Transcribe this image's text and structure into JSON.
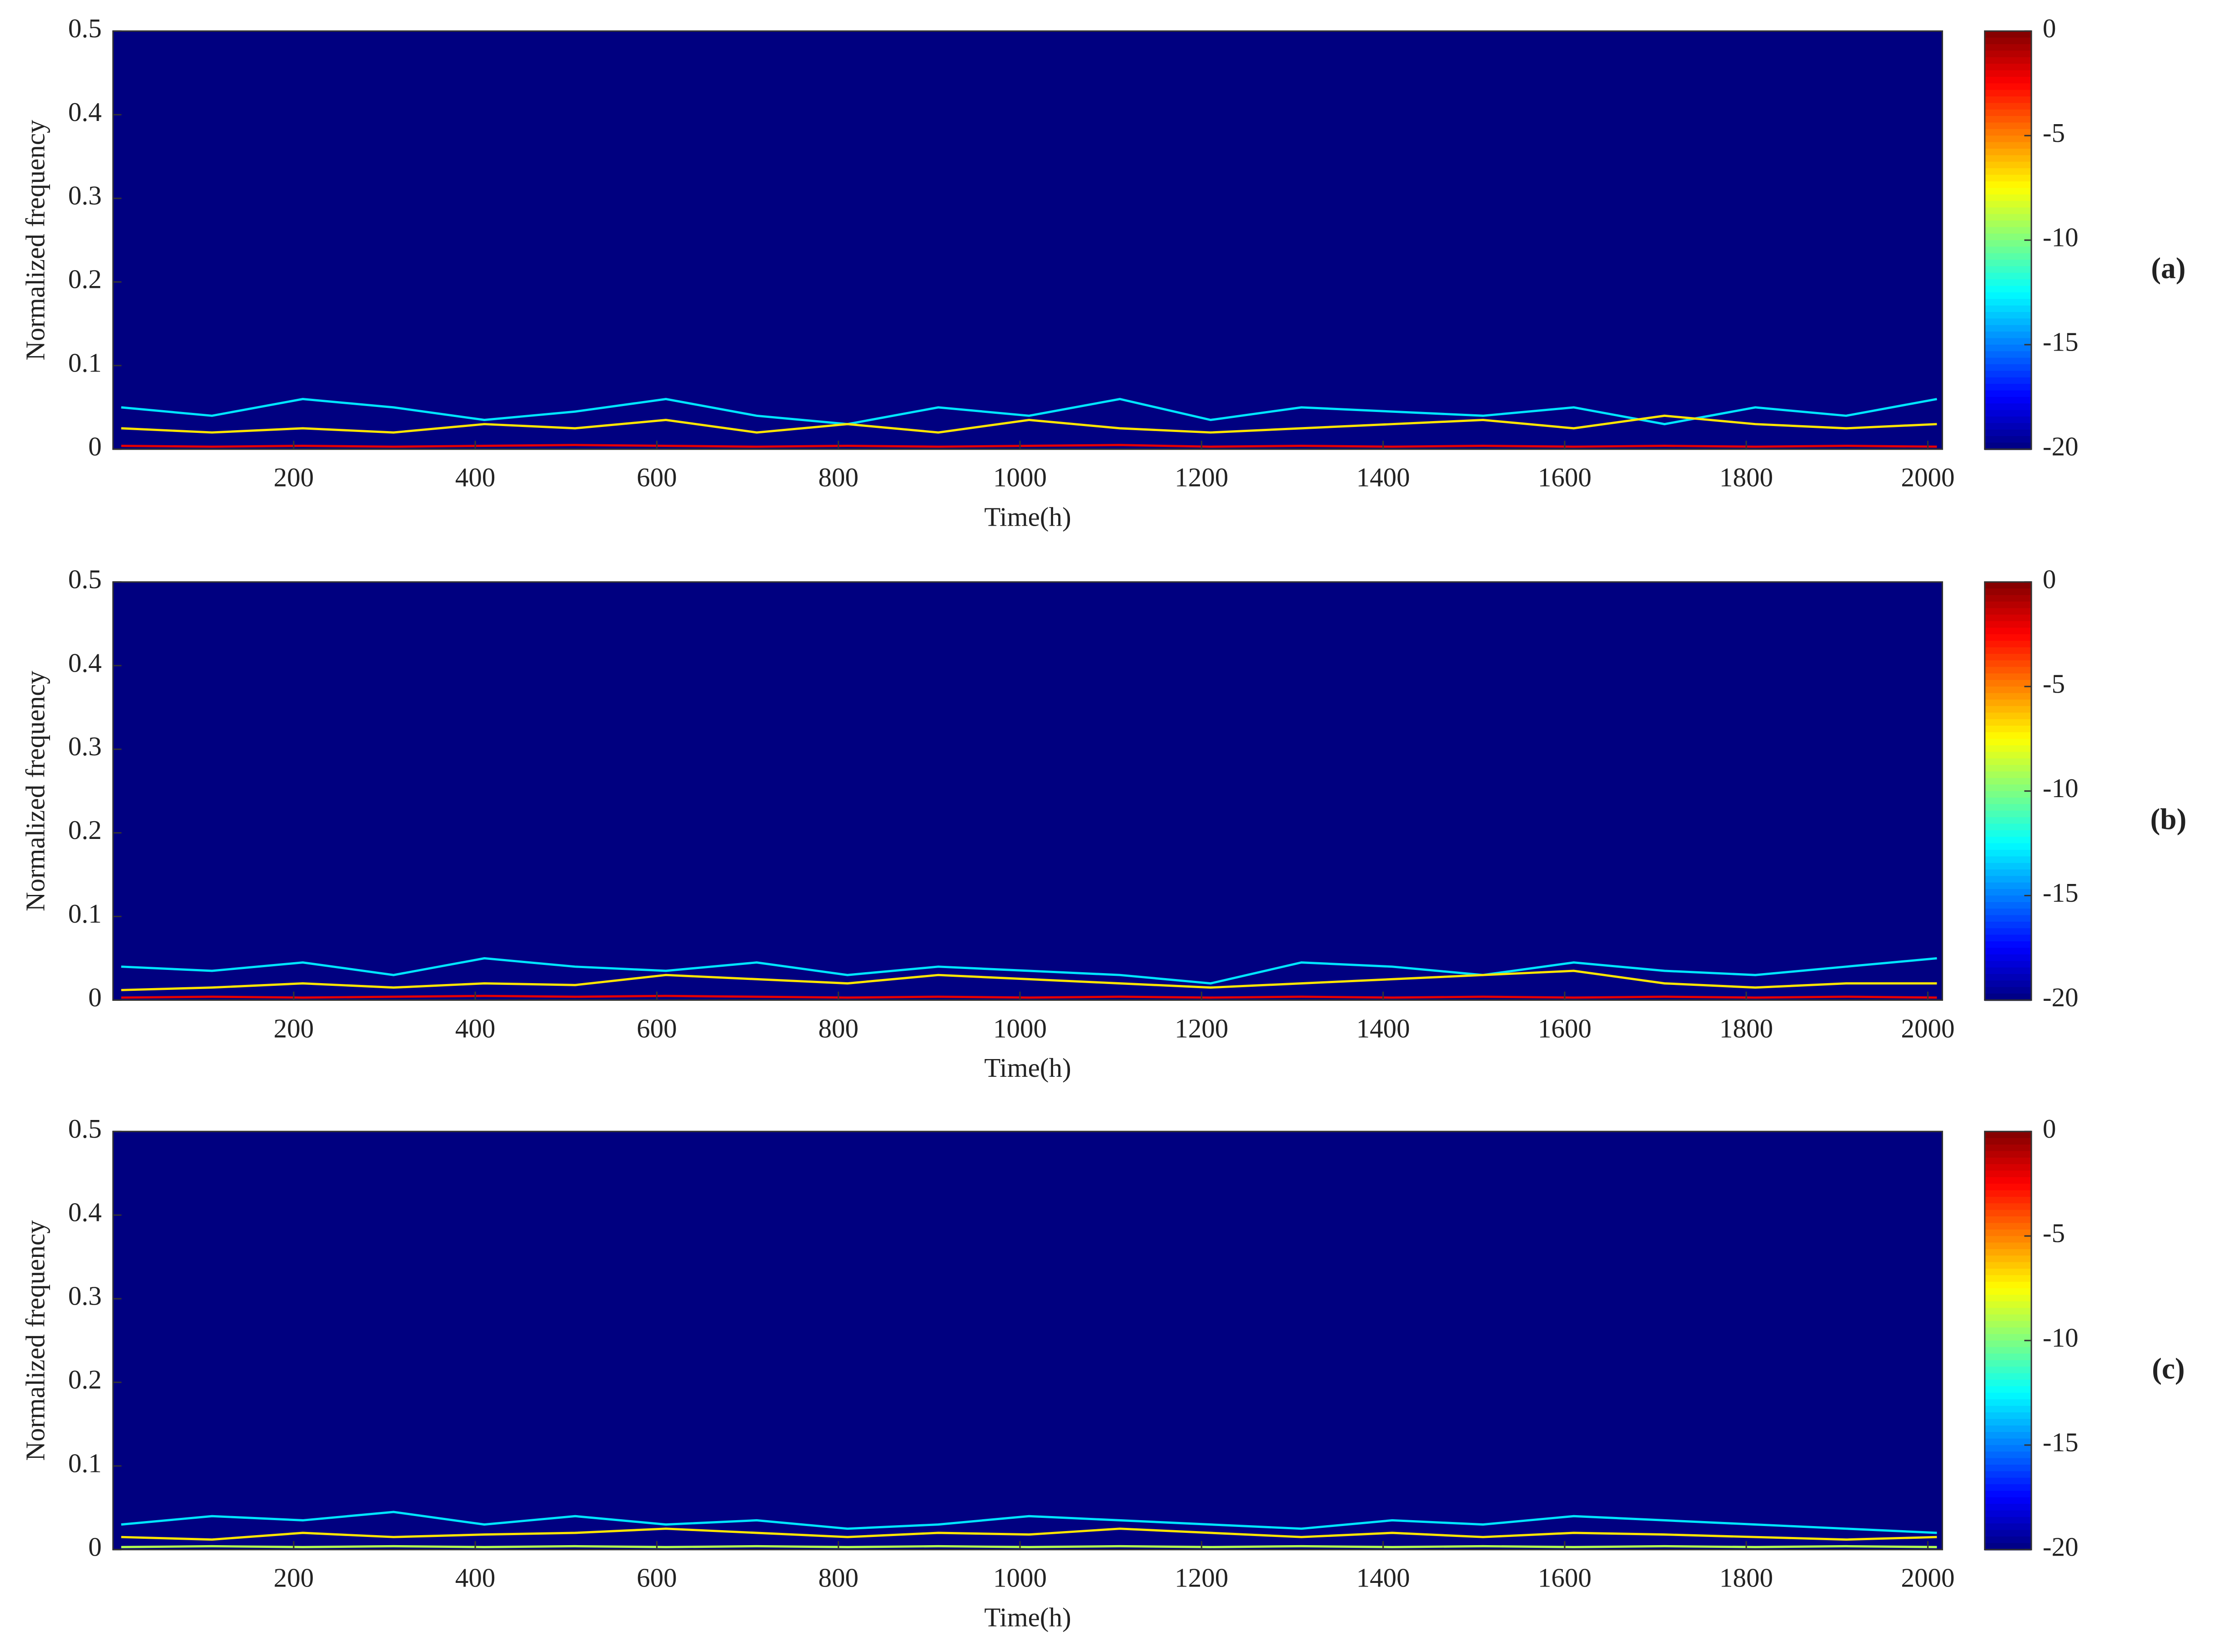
{
  "chart_data": [
    {
      "type": "spectrogram",
      "xlabel": "Time(h)",
      "ylabel": "Normalized frequency",
      "panel_label": "(a)",
      "xlim": [
        1,
        2016
      ],
      "ylim": [
        0,
        0.5
      ],
      "xticks": [
        200,
        400,
        600,
        800,
        1000,
        1200,
        1400,
        1600,
        1800,
        2000
      ],
      "yticks": [
        0,
        0.1,
        0.2,
        0.3,
        0.4,
        0.5
      ],
      "colormap": "jet",
      "clim": [
        -20,
        0
      ],
      "cticks": [
        0,
        -5,
        -10,
        -15,
        -20
      ],
      "background_level": -20,
      "series": [
        {
          "level": -13,
          "x": [
            10,
            110,
            210,
            310,
            410,
            510,
            610,
            710,
            810,
            910,
            1010,
            1110,
            1210,
            1310,
            1410,
            1510,
            1610,
            1710,
            1810,
            1910,
            2010
          ],
          "values": [
            0.05,
            0.04,
            0.06,
            0.05,
            0.035,
            0.045,
            0.06,
            0.04,
            0.03,
            0.05,
            0.04,
            0.06,
            0.035,
            0.05,
            0.045,
            0.04,
            0.05,
            0.03,
            0.05,
            0.04,
            0.06
          ]
        },
        {
          "level": -7,
          "x": [
            10,
            110,
            210,
            310,
            410,
            510,
            610,
            710,
            810,
            910,
            1010,
            1110,
            1210,
            1310,
            1410,
            1510,
            1610,
            1710,
            1810,
            1910,
            2010
          ],
          "values": [
            0.025,
            0.02,
            0.025,
            0.02,
            0.03,
            0.025,
            0.035,
            0.02,
            0.03,
            0.02,
            0.035,
            0.025,
            0.02,
            0.025,
            0.03,
            0.035,
            0.025,
            0.04,
            0.03,
            0.025,
            0.03
          ]
        },
        {
          "level": -2,
          "x": [
            10,
            110,
            210,
            310,
            410,
            510,
            610,
            710,
            810,
            910,
            1010,
            1110,
            1210,
            1310,
            1410,
            1510,
            1610,
            1710,
            1810,
            1910,
            2010
          ],
          "values": [
            0.004,
            0.003,
            0.004,
            0.003,
            0.004,
            0.005,
            0.004,
            0.003,
            0.004,
            0.003,
            0.004,
            0.005,
            0.003,
            0.004,
            0.003,
            0.004,
            0.003,
            0.004,
            0.003,
            0.004,
            0.003
          ]
        }
      ]
    },
    {
      "type": "spectrogram",
      "xlabel": "Time(h)",
      "ylabel": "Normalized frequency",
      "panel_label": "(b)",
      "xlim": [
        1,
        2016
      ],
      "ylim": [
        0,
        0.5
      ],
      "xticks": [
        200,
        400,
        600,
        800,
        1000,
        1200,
        1400,
        1600,
        1800,
        2000
      ],
      "yticks": [
        0,
        0.1,
        0.2,
        0.3,
        0.4,
        0.5
      ],
      "colormap": "jet",
      "clim": [
        -20,
        0
      ],
      "cticks": [
        0,
        -5,
        -10,
        -15,
        -20
      ],
      "background_level": -20,
      "series": [
        {
          "level": -13,
          "x": [
            10,
            110,
            210,
            310,
            410,
            510,
            610,
            710,
            810,
            910,
            1010,
            1110,
            1210,
            1310,
            1410,
            1510,
            1610,
            1710,
            1810,
            1910,
            2010
          ],
          "values": [
            0.04,
            0.035,
            0.045,
            0.03,
            0.05,
            0.04,
            0.035,
            0.045,
            0.03,
            0.04,
            0.035,
            0.03,
            0.02,
            0.045,
            0.04,
            0.03,
            0.045,
            0.035,
            0.03,
            0.04,
            0.05
          ]
        },
        {
          "level": -7,
          "x": [
            10,
            110,
            210,
            310,
            410,
            510,
            610,
            710,
            810,
            910,
            1010,
            1110,
            1210,
            1310,
            1410,
            1510,
            1610,
            1710,
            1810,
            1910,
            2010
          ],
          "values": [
            0.012,
            0.015,
            0.02,
            0.015,
            0.02,
            0.018,
            0.03,
            0.025,
            0.02,
            0.03,
            0.025,
            0.02,
            0.015,
            0.02,
            0.025,
            0.03,
            0.035,
            0.02,
            0.015,
            0.02,
            0.02
          ]
        },
        {
          "level": -2,
          "x": [
            10,
            110,
            210,
            310,
            410,
            510,
            610,
            710,
            810,
            910,
            1010,
            1110,
            1210,
            1310,
            1410,
            1510,
            1610,
            1710,
            1810,
            1910,
            2010
          ],
          "values": [
            0.003,
            0.004,
            0.003,
            0.004,
            0.005,
            0.004,
            0.005,
            0.004,
            0.003,
            0.004,
            0.003,
            0.004,
            0.003,
            0.004,
            0.003,
            0.004,
            0.003,
            0.004,
            0.003,
            0.004,
            0.003
          ]
        }
      ]
    },
    {
      "type": "spectrogram",
      "xlabel": "Time(h)",
      "ylabel": "Normalized frequency",
      "panel_label": "(c)",
      "xlim": [
        1,
        2016
      ],
      "ylim": [
        0,
        0.5
      ],
      "xticks": [
        200,
        400,
        600,
        800,
        1000,
        1200,
        1400,
        1600,
        1800,
        2000
      ],
      "yticks": [
        0,
        0.1,
        0.2,
        0.3,
        0.4,
        0.5
      ],
      "colormap": "jet",
      "clim": [
        -20,
        0
      ],
      "cticks": [
        0,
        -5,
        -10,
        -15,
        -20
      ],
      "background_level": -20,
      "series": [
        {
          "level": -13,
          "x": [
            10,
            110,
            210,
            310,
            410,
            510,
            610,
            710,
            810,
            910,
            1010,
            1110,
            1210,
            1310,
            1410,
            1510,
            1610,
            1710,
            1810,
            1910,
            2010
          ],
          "values": [
            0.03,
            0.04,
            0.035,
            0.045,
            0.03,
            0.04,
            0.03,
            0.035,
            0.025,
            0.03,
            0.04,
            0.035,
            0.03,
            0.025,
            0.035,
            0.03,
            0.04,
            0.035,
            0.03,
            0.025,
            0.02
          ]
        },
        {
          "level": -7,
          "x": [
            10,
            110,
            210,
            310,
            410,
            510,
            610,
            710,
            810,
            910,
            1010,
            1110,
            1210,
            1310,
            1410,
            1510,
            1610,
            1710,
            1810,
            1910,
            2010
          ],
          "values": [
            0.015,
            0.012,
            0.02,
            0.015,
            0.018,
            0.02,
            0.025,
            0.02,
            0.015,
            0.02,
            0.018,
            0.025,
            0.02,
            0.015,
            0.02,
            0.015,
            0.02,
            0.018,
            0.015,
            0.012,
            0.015
          ]
        },
        {
          "level": -9,
          "x": [
            10,
            110,
            210,
            310,
            410,
            510,
            610,
            710,
            810,
            910,
            1010,
            1110,
            1210,
            1310,
            1410,
            1510,
            1610,
            1710,
            1810,
            1910,
            2010
          ],
          "values": [
            0.003,
            0.004,
            0.003,
            0.004,
            0.003,
            0.004,
            0.003,
            0.004,
            0.003,
            0.004,
            0.003,
            0.004,
            0.003,
            0.004,
            0.003,
            0.004,
            0.003,
            0.004,
            0.003,
            0.004,
            0.003
          ]
        }
      ]
    }
  ]
}
